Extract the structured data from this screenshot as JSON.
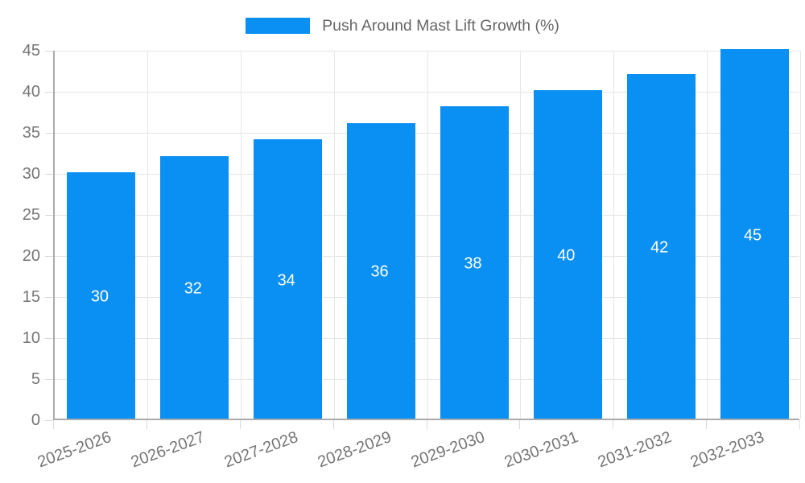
{
  "page": {
    "background_color": "#ffffff"
  },
  "chart_data": {
    "type": "bar",
    "title": "Push Around Mast Lift Growth (%)",
    "legend": {
      "position": "top",
      "label": "Push Around Mast Lift Growth (%)"
    },
    "categories": [
      "2025-2026",
      "2026-2027",
      "2027-2028",
      "2028-2029",
      "2029-2030",
      "2030-2031",
      "2031-2032",
      "2032-2033"
    ],
    "series": [
      {
        "name": "Push Around Mast Lift Growth (%)",
        "values": [
          30,
          32,
          34,
          36,
          38,
          40,
          42,
          45
        ]
      }
    ],
    "value_labels_shown": true,
    "xlabel": "",
    "ylabel": "",
    "ylim": [
      0,
      45
    ],
    "y_ticks": [
      0,
      5,
      10,
      15,
      20,
      25,
      30,
      35,
      40,
      45
    ],
    "grid": "on",
    "x_label_rotation_deg": -20,
    "colors": {
      "bar": "#0a8ff2",
      "value_label": "#ffffff",
      "axis_text": "#757575",
      "legend_text": "#666666",
      "gridline": "#e6e6e6",
      "axis_line": "#ababab"
    }
  }
}
